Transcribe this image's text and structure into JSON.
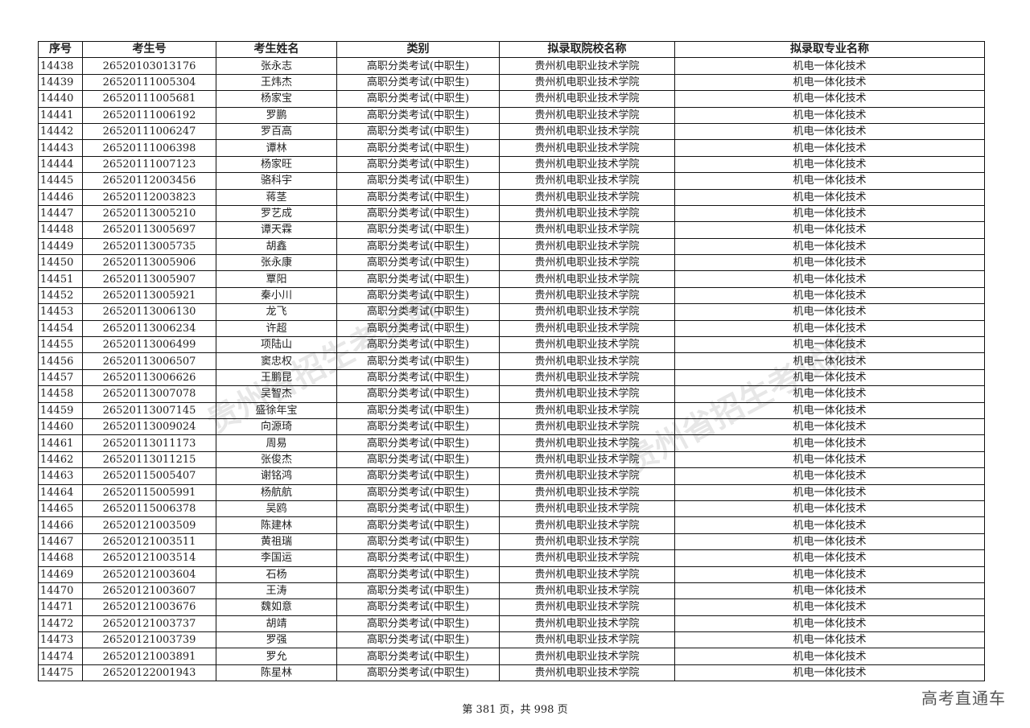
{
  "headers": [
    "序号",
    "考生号",
    "考生姓名",
    "类别",
    "拟录取院校名称",
    "拟录取专业名称"
  ],
  "category": "高职分类考试(中职生)",
  "school": "贵州机电职业技术学院",
  "major": "机电一体化技术",
  "rows": [
    [
      "14438",
      "26520103013176",
      "张永志"
    ],
    [
      "14439",
      "26520111005304",
      "王炜杰"
    ],
    [
      "14440",
      "26520111005681",
      "杨家宝"
    ],
    [
      "14441",
      "26520111006192",
      "罗鹏"
    ],
    [
      "14442",
      "26520111006247",
      "罗百高"
    ],
    [
      "14443",
      "26520111006398",
      "谭林"
    ],
    [
      "14444",
      "26520111007123",
      "杨家旺"
    ],
    [
      "14445",
      "26520112003456",
      "骆科宇"
    ],
    [
      "14446",
      "26520112003823",
      "蒋茎"
    ],
    [
      "14447",
      "26520113005210",
      "罗艺成"
    ],
    [
      "14448",
      "26520113005697",
      "谭天霖"
    ],
    [
      "14449",
      "26520113005735",
      "胡鑫"
    ],
    [
      "14450",
      "26520113005906",
      "张永康"
    ],
    [
      "14451",
      "26520113005907",
      "覃阳"
    ],
    [
      "14452",
      "26520113005921",
      "秦小川"
    ],
    [
      "14453",
      "26520113006130",
      "龙飞"
    ],
    [
      "14454",
      "26520113006234",
      "许超"
    ],
    [
      "14455",
      "26520113006499",
      "项陆山"
    ],
    [
      "14456",
      "26520113006507",
      "窦忠权"
    ],
    [
      "14457",
      "26520113006626",
      "王鹏昆"
    ],
    [
      "14458",
      "26520113007078",
      "吴智杰"
    ],
    [
      "14459",
      "26520113007145",
      "盛徐年宝"
    ],
    [
      "14460",
      "26520113009024",
      "向源琦"
    ],
    [
      "14461",
      "26520113011173",
      "周易"
    ],
    [
      "14462",
      "26520113011215",
      "张俊杰"
    ],
    [
      "14463",
      "26520115005407",
      "谢铭鸿"
    ],
    [
      "14464",
      "26520115005991",
      "杨航航"
    ],
    [
      "14465",
      "26520115006378",
      "吴鸥"
    ],
    [
      "14466",
      "26520121003509",
      "陈建林"
    ],
    [
      "14467",
      "26520121003511",
      "黄祖瑞"
    ],
    [
      "14468",
      "26520121003514",
      "李国运"
    ],
    [
      "14469",
      "26520121003604",
      "石杨"
    ],
    [
      "14470",
      "26520121003607",
      "王涛"
    ],
    [
      "14471",
      "26520121003676",
      "魏如意"
    ],
    [
      "14472",
      "26520121003737",
      "胡靖"
    ],
    [
      "14473",
      "26520121003739",
      "罗强"
    ],
    [
      "14474",
      "26520121003891",
      "罗允"
    ],
    [
      "14475",
      "26520122001943",
      "陈星林"
    ]
  ],
  "footer": "第 381 页，共 998 页",
  "brand": "高考直通车",
  "watermark": "贵州省招生考试院"
}
